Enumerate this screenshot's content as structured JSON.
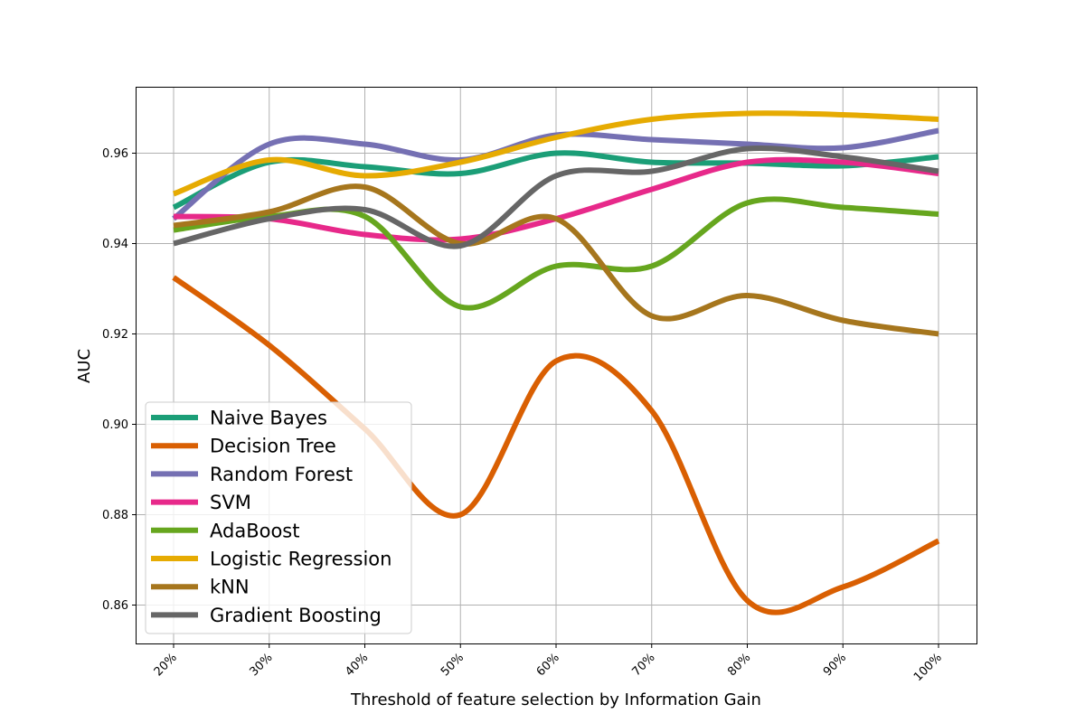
{
  "chart_data": {
    "type": "line",
    "title": "",
    "xlabel": "Threshold of feature selection by Information Gain",
    "ylabel": "AUC",
    "categories": [
      "20%",
      "30%",
      "40%",
      "50%",
      "60%",
      "70%",
      "80%",
      "90%",
      "100%"
    ],
    "yticks": [
      "0.86",
      "0.88",
      "0.90",
      "0.92",
      "0.94",
      "0.96"
    ],
    "ytick_values": [
      0.86,
      0.88,
      0.9,
      0.92,
      0.94,
      0.96
    ],
    "ylim": [
      0.8515,
      0.9745
    ],
    "grid": true,
    "legend_position": "lower-left",
    "series": [
      {
        "name": "Naive Bayes",
        "color": "#1b9e77",
        "values": [
          0.948,
          0.958,
          0.957,
          0.9555,
          0.96,
          0.958,
          0.9578,
          0.9572,
          0.9592
        ]
      },
      {
        "name": "Decision Tree",
        "color": "#d95f02",
        "values": [
          0.9325,
          0.9175,
          0.899,
          0.88,
          0.914,
          0.903,
          0.861,
          0.864,
          0.8742
        ]
      },
      {
        "name": "Random Forest",
        "color": "#7570b3",
        "values": [
          0.9455,
          0.962,
          0.962,
          0.9585,
          0.964,
          0.963,
          0.962,
          0.9612,
          0.965
        ]
      },
      {
        "name": "SVM",
        "color": "#e7298a",
        "values": [
          0.946,
          0.9455,
          0.942,
          0.941,
          0.9455,
          0.952,
          0.958,
          0.958,
          0.9555
        ]
      },
      {
        "name": "AdaBoost",
        "color": "#66a61e",
        "values": [
          0.943,
          0.946,
          0.946,
          0.926,
          0.935,
          0.935,
          0.949,
          0.948,
          0.9465
        ]
      },
      {
        "name": "Logistic Regression",
        "color": "#e6ab02",
        "values": [
          0.951,
          0.9585,
          0.955,
          0.958,
          0.9635,
          0.9675,
          0.9688,
          0.9685,
          0.9675
        ]
      },
      {
        "name": "kNN",
        "color": "#a6761d",
        "values": [
          0.944,
          0.947,
          0.9525,
          0.94,
          0.9455,
          0.924,
          0.9285,
          0.923,
          0.92
        ]
      },
      {
        "name": "Gradient Boosting",
        "color": "#666666",
        "values": [
          0.94,
          0.9455,
          0.9475,
          0.9395,
          0.955,
          0.956,
          0.961,
          0.9592,
          0.956
        ]
      }
    ]
  }
}
